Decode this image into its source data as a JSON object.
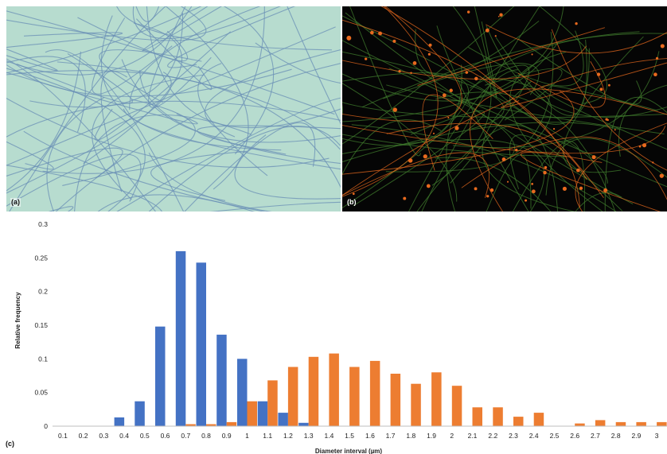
{
  "panels": {
    "a": {
      "label": "(a)",
      "fiber_color": "#6a8fb5",
      "background": "#b7dccf"
    },
    "b": {
      "label": "(b)",
      "fiber_color": "#3f7a2c",
      "bead_color": "#e86a1e",
      "background": "#050505"
    }
  },
  "chart_data": {
    "type": "bar",
    "panel_label": "(c)",
    "title": "",
    "xlabel": "Diameter interval (µm)",
    "ylabel": "Relative frequency",
    "ylim": [
      0,
      0.3
    ],
    "yticks": [
      "0",
      "0.05",
      "0.1",
      "0.15",
      "0.2",
      "0.25",
      "0.3"
    ],
    "grid": false,
    "categories": [
      "0.1",
      "0.2",
      "0.3",
      "0.4",
      "0.5",
      "0.6",
      "0.7",
      "0.8",
      "0.9",
      "1",
      "1.1",
      "1.2",
      "1.3",
      "1.4",
      "1.5",
      "1.6",
      "1.7",
      "1.8",
      "1.9",
      "2",
      "2.1",
      "2.2",
      "2.3",
      "2.4",
      "2.5",
      "2.6",
      "2.7",
      "2.8",
      "2.9",
      "3"
    ],
    "series": [
      {
        "color": "#4472c4",
        "values": [
          0,
          0,
          0,
          0.013,
          0.037,
          0.148,
          0.26,
          0.243,
          0.136,
          0.1,
          0.037,
          0.02,
          0.005,
          0,
          0,
          0,
          0,
          0,
          0,
          0,
          0,
          0,
          0,
          0,
          0,
          0,
          0,
          0,
          0,
          0
        ]
      },
      {
        "color": "#ed7d31",
        "values": [
          0,
          0,
          0,
          0,
          0,
          0,
          0.003,
          0.003,
          0.006,
          0.037,
          0.068,
          0.088,
          0.103,
          0.108,
          0.088,
          0.097,
          0.078,
          0.063,
          0.08,
          0.06,
          0.028,
          0.028,
          0.014,
          0.02,
          0,
          0.004,
          0.009,
          0.006,
          0.006,
          0.006
        ]
      }
    ]
  }
}
